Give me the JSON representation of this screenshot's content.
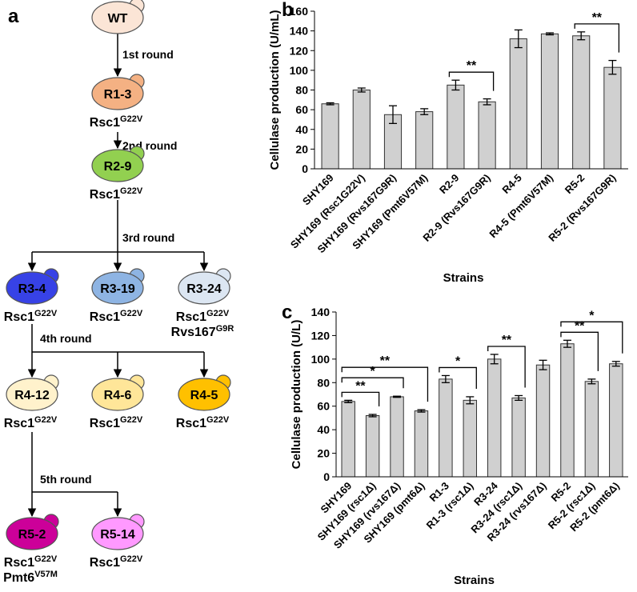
{
  "diagram": {
    "panel_label": "a",
    "nodes": [
      {
        "label": "WT",
        "color": "#fbe5d6",
        "genotype": []
      },
      {
        "label": "R1-3",
        "color": "#f4b183",
        "genotype": [
          {
            "base": "Rsc1",
            "sup": "G22V"
          }
        ]
      },
      {
        "label": "R2-9",
        "color": "#92d050",
        "genotype": [
          {
            "base": "Rsc1",
            "sup": "G22V"
          }
        ]
      },
      {
        "label": "R3-4",
        "color": "#3742e6",
        "genotype": [
          {
            "base": "Rsc1",
            "sup": "G22V"
          }
        ]
      },
      {
        "label": "R3-19",
        "color": "#8eb4e3",
        "genotype": [
          {
            "base": "Rsc1",
            "sup": "G22V"
          }
        ]
      },
      {
        "label": "R3-24",
        "color": "#dce6f2",
        "genotype": [
          {
            "base": "Rsc1",
            "sup": "G22V"
          },
          {
            "base": "Rvs167",
            "sup": "G9R"
          }
        ]
      },
      {
        "label": "R4-12",
        "color": "#fff2cc",
        "genotype": [
          {
            "base": "Rsc1",
            "sup": "G22V"
          }
        ]
      },
      {
        "label": "R4-6",
        "color": "#ffe699",
        "genotype": [
          {
            "base": "Rsc1",
            "sup": "G22V"
          }
        ]
      },
      {
        "label": "R4-5",
        "color": "#ffc000",
        "genotype": [
          {
            "base": "Rsc1",
            "sup": "G22V"
          }
        ]
      },
      {
        "label": "R5-2",
        "color": "#cc0099",
        "genotype": [
          {
            "base": "Rsc1",
            "sup": "G22V"
          },
          {
            "base": "Pmt6",
            "sup": "V57M"
          }
        ]
      },
      {
        "label": "R5-14",
        "color": "#ff99ff",
        "genotype": [
          {
            "base": "Rsc1",
            "sup": "G22V"
          }
        ]
      }
    ],
    "rounds": [
      "1st round",
      "2nd round",
      "3rd round",
      "4th round",
      "5th round"
    ]
  },
  "chart_data": [
    {
      "type": "bar",
      "panel_label": "b",
      "y_label": "Cellulase production (U/mL)",
      "x_label": "Strains",
      "categories": [
        "SHY169",
        "SHY169 (Rsc1G22V)",
        "SHY169 (Rvs167G9R)",
        "SHY169 (Pmt6V57M)",
        "R2-9",
        "R2-9 (Rvs167G9R)",
        "R4-5",
        "R4-5 (Pmt6V57M)",
        "R5-2",
        "R5-2 (Rvs167G9R)"
      ],
      "values": [
        66,
        80,
        55,
        58,
        85,
        68,
        132,
        137,
        135,
        103
      ],
      "errors": [
        1,
        2,
        9,
        3,
        5,
        3,
        9,
        1,
        4,
        7
      ],
      "color": "#d0d0d0",
      "ylim": [
        0,
        160
      ],
      "yticks": [
        0,
        20,
        40,
        60,
        80,
        100,
        120,
        140,
        160
      ],
      "annotations": [
        {
          "text": "**",
          "categories": [
            4,
            5
          ]
        },
        {
          "text": "**",
          "categories": [
            8,
            9
          ]
        }
      ]
    },
    {
      "type": "bar",
      "panel_label": "c",
      "y_label": "Cellulase production (U/L)",
      "x_label": "Strains",
      "categories": [
        "SHY169",
        "SHY169 (rsc1Δ)",
        "SHY169 (rvs167Δ)",
        "SHY169 (pmt6Δ)",
        "R1-3",
        "R1-3 (rsc1Δ)",
        "R3-24",
        "R3-24 (rsc1Δ)",
        "R3-24 (rvs167Δ)",
        "R5-2",
        "R5-2 (rsc1Δ)",
        "R5-2 (pmt6Δ)"
      ],
      "values": [
        64,
        52,
        68,
        56,
        83,
        65,
        100,
        67,
        95,
        113,
        81,
        96
      ],
      "errors": [
        1,
        1,
        0.5,
        1,
        3,
        3,
        4,
        2,
        4,
        3,
        2,
        2
      ],
      "color": "#d0d0d0",
      "ylim": [
        0,
        140
      ],
      "yticks": [
        0,
        20,
        40,
        60,
        80,
        100,
        120,
        140
      ],
      "annotations": [
        {
          "text": "**",
          "categories": [
            0,
            1
          ]
        },
        {
          "text": "*",
          "categories": [
            0,
            2
          ]
        },
        {
          "text": "**",
          "categories": [
            0,
            3
          ]
        },
        {
          "text": "*",
          "categories": [
            4,
            5
          ]
        },
        {
          "text": "**",
          "categories": [
            6,
            7
          ]
        },
        {
          "text": "**",
          "categories": [
            9,
            10
          ]
        },
        {
          "text": "*",
          "categories": [
            9,
            11
          ]
        }
      ]
    }
  ]
}
